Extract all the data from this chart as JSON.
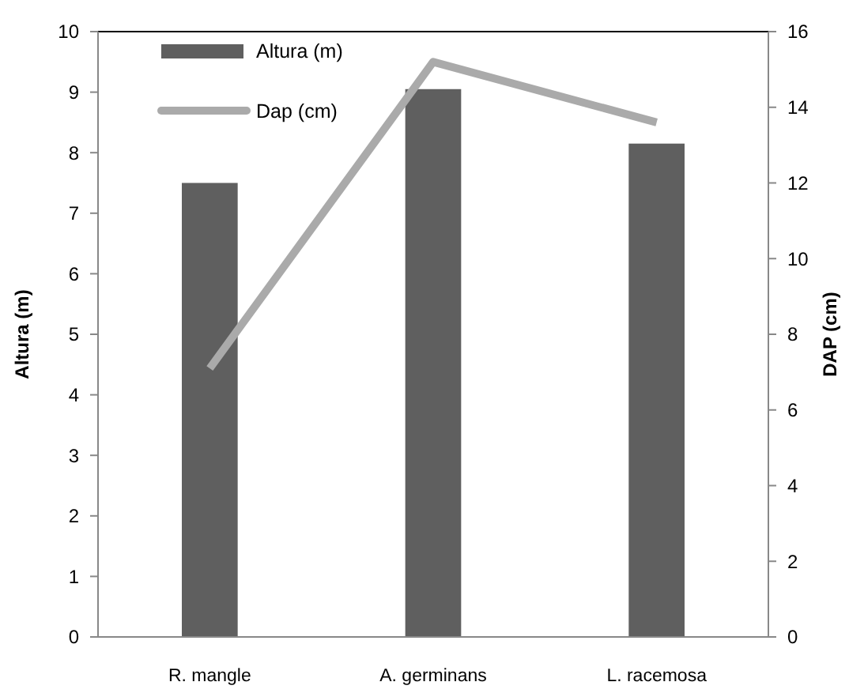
{
  "chart_data": {
    "type": "bar",
    "categories": [
      "R. mangle",
      "A. germinans",
      "L. racemosa"
    ],
    "series": [
      {
        "name": "Altura (m)",
        "color": "#5f5f5f",
        "values": [
          7.5,
          9.05,
          8.15
        ]
      },
      {
        "name": "Dap (cm)",
        "type": "line",
        "axis": "y2",
        "color": "#aaaaaa",
        "values": [
          7.1,
          15.2,
          13.6
        ]
      }
    ],
    "ylabel": "Altura (m)",
    "y2label": "DAP (cm)",
    "ylim": [
      0,
      10
    ],
    "yticks": [
      0,
      1,
      2,
      3,
      4,
      5,
      6,
      7,
      8,
      9,
      10
    ],
    "y2lim": [
      0,
      16
    ],
    "y2ticks": [
      0,
      2,
      4,
      6,
      8,
      10,
      12,
      14,
      16
    ],
    "grid": false,
    "legend": "top left",
    "marker": "none",
    "line_style": "solid"
  }
}
